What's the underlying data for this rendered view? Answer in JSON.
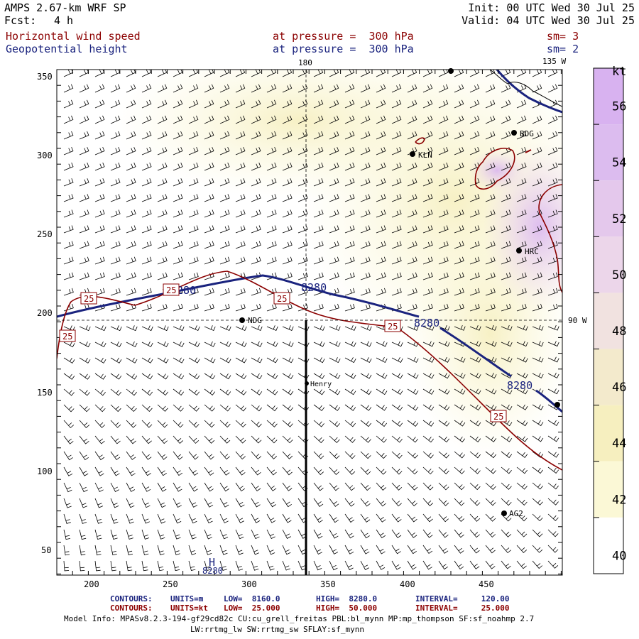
{
  "header": {
    "title": "AMPS 2.67-km WRF SP",
    "forecast_label": "Fcst:",
    "forecast_value": "4 h",
    "init": "Init: 00 UTC Wed 30 Jul 25",
    "valid": "Valid: 04 UTC Wed 30 Jul 25",
    "field1_name": "Horizontal wind speed",
    "field1_level": "at pressure =  300 hPa",
    "field1_smooth": "sm= 3",
    "field2_name": "Geopotential height",
    "field2_level": "at pressure =  300 hPa",
    "field2_smooth": "sm= 2"
  },
  "map": {
    "x_ticks": [
      "200",
      "250",
      "300",
      "350",
      "400",
      "450"
    ],
    "y_ticks": [
      "350",
      "300",
      "250",
      "200",
      "150",
      "100",
      "50"
    ],
    "lon_labels": {
      "top_180": "180",
      "top_135w": "135 W",
      "right_90w": "90 W"
    },
    "stations": [
      {
        "code": "BDG"
      },
      {
        "code": "KLN"
      },
      {
        "code": "HRC"
      },
      {
        "code": "NDG"
      },
      {
        "code": "Henry"
      },
      {
        "code": "AG2"
      }
    ],
    "height_contour_labels": [
      "8280",
      "8280",
      "8280",
      "8280",
      "8280"
    ],
    "speed_contour_labels": [
      "25",
      "25",
      "25",
      "25",
      "25",
      "25"
    ],
    "high_low_marker": "H",
    "colors": {
      "height_contour": "#1a237e",
      "speed_contour": "#8b0000"
    }
  },
  "colorbar": {
    "unit": "kt",
    "ticks": [
      "56",
      "54",
      "52",
      "50",
      "48",
      "46",
      "44",
      "42",
      "40"
    ],
    "colors": [
      "#d8b2f0",
      "#dcbcef",
      "#e4c8ec",
      "#ecd6ea",
      "#f1e2e0",
      "#f3eacc",
      "#f6efbf",
      "#fbf8d6",
      "#ffffff"
    ]
  },
  "footer": {
    "line1_label": "CONTOURS:",
    "line1_units": "UNITS=m",
    "line1_low": "LOW=  8160.0",
    "line1_high": "HIGH=  8280.0",
    "line1_interval": "INTERVAL=     120.00",
    "line2_label": "CONTOURS:",
    "line2_units": "UNITS=kt",
    "line2_low": "LOW=  25.000",
    "line2_high": "HIGH=  50.000",
    "line2_interval": "INTERVAL=     25.000",
    "model_info": "Model Info: MPASv8.2.3-194-gf29cd82c CU:cu_grell_freitas PBL:bl_mynn MP:mp_thompson SF:sf_noahmp 2.7",
    "model_info2": "LW:rrtmg_lw SW:rrtmg_sw SFLAY:sf_mynn"
  }
}
